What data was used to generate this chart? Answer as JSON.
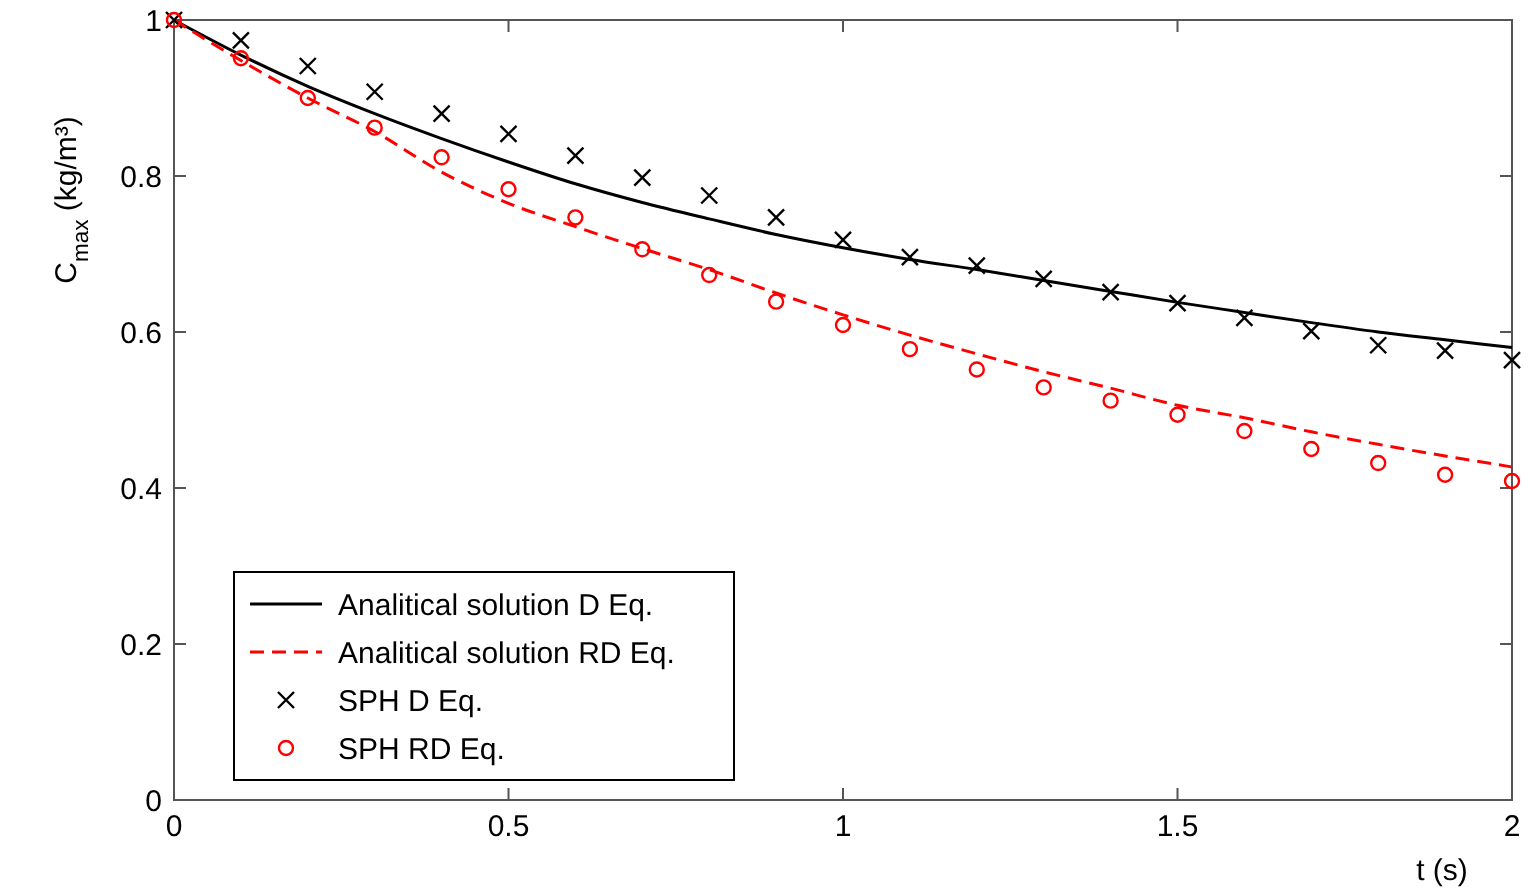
{
  "chart_data": {
    "type": "line",
    "xlabel": "t (s)",
    "ylabel": "C$_{max}$ (kg/m³)",
    "xlim": [
      0,
      2
    ],
    "ylim": [
      0,
      1
    ],
    "xticks": [
      0,
      0.5,
      1,
      1.5,
      2
    ],
    "yticks": [
      0,
      0.2,
      0.4,
      0.6,
      0.8,
      1
    ],
    "grid": false,
    "legend": "bottom left",
    "series": [
      {
        "name": "Analitical solution D Eq.",
        "color": "#000000",
        "line_style": "solid",
        "marker": "none",
        "x": [
          0,
          0.1,
          0.2,
          0.3,
          0.4,
          0.5,
          0.6,
          0.7,
          0.8,
          0.9,
          1.0,
          1.1,
          1.2,
          1.3,
          1.4,
          1.5,
          1.6,
          1.7,
          1.8,
          1.9,
          2.0
        ],
        "values": [
          1,
          0.955,
          0.915,
          0.88,
          0.848,
          0.818,
          0.79,
          0.766,
          0.745,
          0.725,
          0.708,
          0.693,
          0.68,
          0.666,
          0.652,
          0.638,
          0.625,
          0.612,
          0.6,
          0.59,
          0.58
        ]
      },
      {
        "name": "Analitical solution RD Eq.",
        "color": "#ff0000",
        "line_style": "dashed",
        "marker": "none",
        "x": [
          0,
          0.1,
          0.2,
          0.3,
          0.4,
          0.5,
          0.6,
          0.7,
          0.8,
          0.9,
          1.0,
          1.1,
          1.2,
          1.3,
          1.4,
          1.5,
          1.6,
          1.7,
          1.8,
          1.9,
          2.0
        ],
        "values": [
          1,
          0.948,
          0.9,
          0.857,
          0.805,
          0.765,
          0.735,
          0.707,
          0.68,
          0.65,
          0.622,
          0.596,
          0.572,
          0.549,
          0.528,
          0.506,
          0.49,
          0.472,
          0.456,
          0.441,
          0.427
        ]
      },
      {
        "name": "SPH D Eq.",
        "type": "scatter",
        "color": "#000000",
        "marker": "cross",
        "x": [
          0,
          0.1,
          0.2,
          0.3,
          0.4,
          0.5,
          0.6,
          0.7,
          0.8,
          0.9,
          1.0,
          1.1,
          1.2,
          1.3,
          1.4,
          1.5,
          1.6,
          1.7,
          1.8,
          1.9,
          2.0
        ],
        "values": [
          1,
          0.974,
          0.941,
          0.908,
          0.88,
          0.854,
          0.826,
          0.798,
          0.775,
          0.747,
          0.718,
          0.696,
          0.685,
          0.668,
          0.651,
          0.637,
          0.618,
          0.601,
          0.583,
          0.576,
          0.564
        ]
      },
      {
        "name": "SPH RD Eq.",
        "type": "scatter",
        "color": "#ff0000",
        "marker": "circle",
        "x": [
          0,
          0.1,
          0.2,
          0.3,
          0.4,
          0.5,
          0.6,
          0.7,
          0.8,
          0.9,
          1.0,
          1.1,
          1.2,
          1.3,
          1.4,
          1.5,
          1.6,
          1.7,
          1.8,
          1.9,
          2.0
        ],
        "values": [
          1,
          0.951,
          0.9,
          0.862,
          0.824,
          0.783,
          0.747,
          0.706,
          0.673,
          0.639,
          0.609,
          0.578,
          0.552,
          0.529,
          0.512,
          0.494,
          0.473,
          0.45,
          0.432,
          0.417,
          0.409
        ]
      }
    ]
  }
}
